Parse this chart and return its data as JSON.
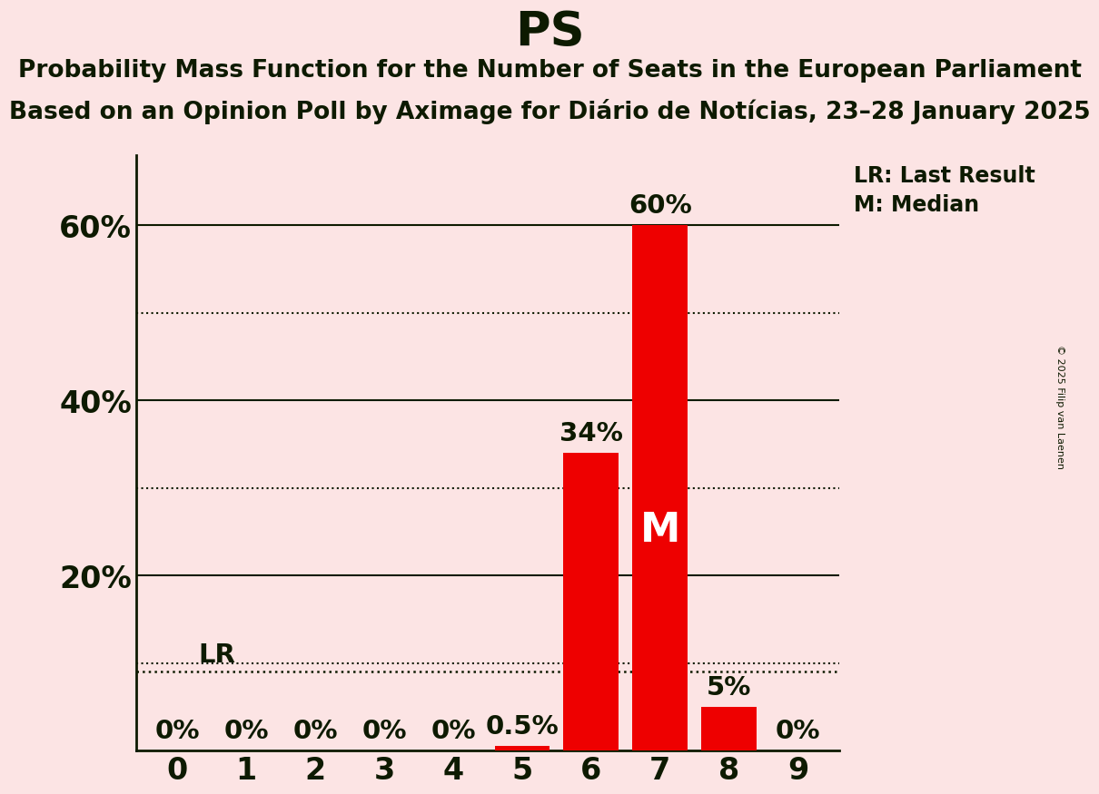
{
  "title": "PS",
  "subtitle1": "Probability Mass Function for the Number of Seats in the European Parliament",
  "subtitle2": "Based on an Opinion Poll by Aximage for Diário de Notícias, 23–28 January 2025",
  "x_values": [
    0,
    1,
    2,
    3,
    4,
    5,
    6,
    7,
    8,
    9
  ],
  "y_values": [
    0.0,
    0.0,
    0.0,
    0.0,
    0.0,
    0.5,
    34.0,
    60.0,
    5.0,
    0.0
  ],
  "bar_color": "#ee0000",
  "background_color": "#fce4e4",
  "text_color": "#0d1a00",
  "ylim": [
    0,
    68
  ],
  "yticks_major": [
    0,
    20,
    40,
    60
  ],
  "ytick_major_labels": [
    "",
    "20%",
    "40%",
    "60%"
  ],
  "yticks_minor": [
    10,
    30,
    50
  ],
  "lr_value": 9.0,
  "median_seat": 7,
  "bar_labels": [
    "0%",
    "0%",
    "0%",
    "0%",
    "0%",
    "0.5%",
    "34%",
    "60%",
    "5%",
    "0%"
  ],
  "copyright_text": "© 2025 Filip van Laenen",
  "legend_lr": "LR: Last Result",
  "legend_m": "M: Median",
  "title_fontsize": 38,
  "subtitle_fontsize": 19,
  "axis_fontsize": 24,
  "label_fontsize": 21
}
